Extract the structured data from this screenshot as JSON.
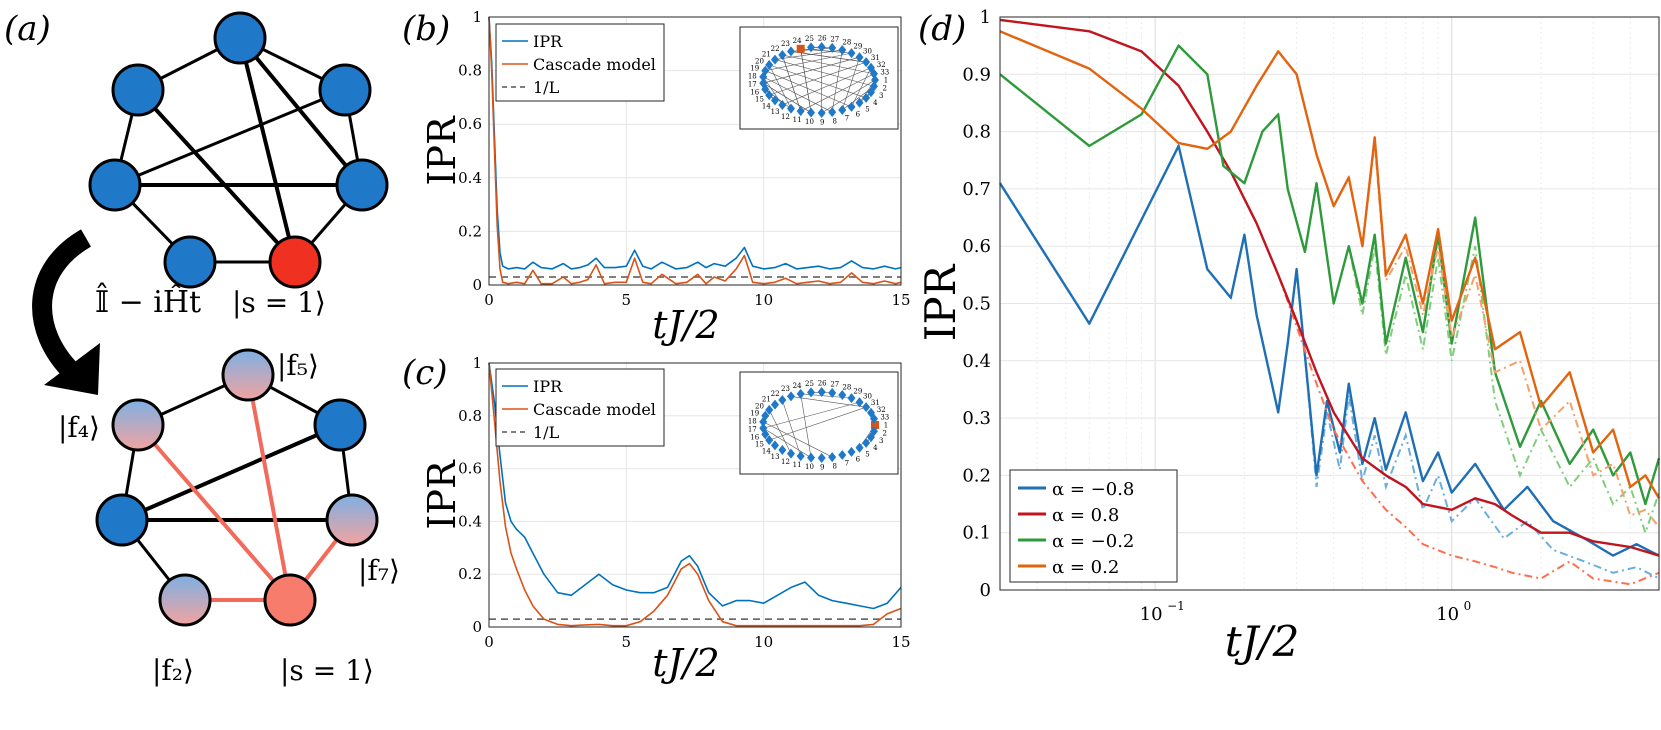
{
  "panel_labels": {
    "a": "(a)",
    "b": "(b)",
    "c": "(c)",
    "d": "(d)"
  },
  "graph": {
    "operator_label": "𝕀̂ − iĤt",
    "top_state_label": "|s = 1⟩",
    "bottom_labels": {
      "f5": "|f₅⟩",
      "f4": "|f₄⟩",
      "f7": "|f₇⟩",
      "f2": "|f₂⟩",
      "s": "|s = 1⟩"
    },
    "colors": {
      "node_blue": "#1f78c8",
      "node_red": "#f03020",
      "edge_red": "#f26a5c"
    }
  },
  "chart_data": [
    {
      "id": "b",
      "type": "line",
      "xlabel": "tJ/2",
      "ylabel": "IPR",
      "xlim": [
        0,
        15
      ],
      "ylim": [
        0,
        1
      ],
      "xticks": [
        0,
        5,
        10,
        15
      ],
      "yticks": [
        0,
        0.2,
        0.4,
        0.6,
        0.8,
        1
      ],
      "ytick_labels": [
        "0",
        "0.2",
        "0.4",
        "0.6",
        "0.8",
        "1"
      ],
      "legend": [
        "IPR",
        "Cascade model",
        "1/L"
      ],
      "inset_ring_labels": [
        "1",
        "33",
        "32",
        "31",
        "30",
        "29",
        "28",
        "27",
        "26",
        "25",
        "24",
        "23",
        "22",
        "21",
        "20",
        "19",
        "18",
        "17",
        "16",
        "15",
        "14",
        "13",
        "12",
        "11",
        "10",
        "9",
        "8",
        "7",
        "6",
        "5",
        "4",
        "3",
        "2"
      ],
      "one_over_L": 0.03,
      "series": [
        {
          "name": "IPR",
          "color": "#0072bd",
          "x": [
            0,
            0.1,
            0.2,
            0.3,
            0.4,
            0.5,
            0.7,
            1.0,
            1.3,
            1.6,
            1.9,
            2.3,
            2.7,
            3.0,
            3.3,
            3.6,
            3.9,
            4.2,
            4.6,
            5.0,
            5.3,
            5.6,
            5.9,
            6.3,
            6.8,
            7.2,
            7.6,
            7.9,
            8.2,
            8.6,
            9.0,
            9.3,
            9.6,
            10.0,
            10.4,
            10.8,
            11.2,
            11.6,
            12.0,
            12.4,
            12.8,
            13.2,
            13.6,
            14.0,
            14.4,
            14.8,
            15.0
          ],
          "y": [
            1.0,
            0.83,
            0.55,
            0.28,
            0.12,
            0.07,
            0.06,
            0.065,
            0.06,
            0.085,
            0.065,
            0.06,
            0.08,
            0.06,
            0.065,
            0.075,
            0.1,
            0.065,
            0.065,
            0.07,
            0.13,
            0.07,
            0.06,
            0.085,
            0.06,
            0.065,
            0.085,
            0.065,
            0.08,
            0.07,
            0.1,
            0.14,
            0.07,
            0.06,
            0.065,
            0.08,
            0.06,
            0.065,
            0.07,
            0.06,
            0.065,
            0.09,
            0.065,
            0.06,
            0.07,
            0.06,
            0.065
          ]
        },
        {
          "name": "Cascade model",
          "color": "#d95319",
          "x": [
            0,
            0.1,
            0.2,
            0.3,
            0.4,
            0.5,
            0.7,
            1.0,
            1.3,
            1.6,
            1.9,
            2.3,
            2.7,
            3.0,
            3.3,
            3.6,
            3.9,
            4.2,
            4.6,
            5.0,
            5.3,
            5.6,
            5.9,
            6.3,
            6.8,
            7.2,
            7.6,
            7.9,
            8.2,
            8.6,
            9.0,
            9.3,
            9.6,
            10.0,
            10.4,
            10.8,
            11.2,
            11.6,
            12.0,
            12.4,
            12.8,
            13.2,
            13.6,
            14.0,
            14.4,
            14.8,
            15.0
          ],
          "y": [
            1.0,
            0.8,
            0.5,
            0.22,
            0.06,
            0.01,
            0.005,
            0.01,
            0.005,
            0.055,
            0.005,
            0.005,
            0.03,
            0.005,
            0.01,
            0.02,
            0.075,
            0.005,
            0.01,
            0.01,
            0.1,
            0.01,
            0.005,
            0.04,
            0.005,
            0.01,
            0.04,
            0.005,
            0.03,
            0.015,
            0.06,
            0.11,
            0.01,
            0.005,
            0.01,
            0.025,
            0.005,
            0.01,
            0.015,
            0.005,
            0.01,
            0.045,
            0.01,
            0.005,
            0.015,
            0.005,
            0.01
          ]
        }
      ]
    },
    {
      "id": "c",
      "type": "line",
      "xlabel": "tJ/2",
      "ylabel": "IPR",
      "xlim": [
        0,
        15
      ],
      "ylim": [
        0,
        1
      ],
      "xticks": [
        0,
        5,
        10,
        15
      ],
      "yticks": [
        0,
        0.2,
        0.4,
        0.6,
        0.8,
        1
      ],
      "ytick_labels": [
        "0",
        "0.2",
        "0.4",
        "0.6",
        "0.8",
        "1"
      ],
      "legend": [
        "IPR",
        "Cascade model",
        "1/L"
      ],
      "inset_ring_labels": [
        "1",
        "33",
        "32",
        "31",
        "30",
        "29",
        "28",
        "27",
        "26",
        "25",
        "24",
        "23",
        "22",
        "21",
        "20",
        "19",
        "18",
        "17",
        "16",
        "15",
        "14",
        "13",
        "12",
        "11",
        "10",
        "9",
        "8",
        "7",
        "6",
        "5",
        "4",
        "3",
        "2"
      ],
      "one_over_L": 0.03,
      "series": [
        {
          "name": "IPR",
          "color": "#0072bd",
          "x": [
            0,
            0.2,
            0.4,
            0.6,
            0.8,
            1.0,
            1.3,
            1.6,
            2.0,
            2.5,
            3.0,
            3.5,
            4.0,
            4.5,
            5.0,
            5.5,
            6.0,
            6.5,
            7.0,
            7.3,
            7.6,
            8.0,
            8.5,
            9.0,
            9.5,
            10.0,
            10.5,
            11.0,
            11.5,
            12.0,
            12.5,
            13.0,
            13.5,
            14.0,
            14.5,
            15.0
          ],
          "y": [
            1.0,
            0.85,
            0.65,
            0.47,
            0.4,
            0.37,
            0.34,
            0.28,
            0.2,
            0.13,
            0.12,
            0.16,
            0.2,
            0.16,
            0.14,
            0.13,
            0.13,
            0.15,
            0.25,
            0.27,
            0.23,
            0.13,
            0.08,
            0.1,
            0.1,
            0.09,
            0.12,
            0.15,
            0.17,
            0.12,
            0.1,
            0.09,
            0.08,
            0.07,
            0.09,
            0.15
          ]
        },
        {
          "name": "Cascade model",
          "color": "#d95319",
          "x": [
            0,
            0.2,
            0.4,
            0.6,
            0.8,
            1.0,
            1.3,
            1.6,
            2.0,
            2.5,
            3.0,
            3.5,
            4.0,
            4.5,
            5.0,
            5.5,
            6.0,
            6.5,
            7.0,
            7.3,
            7.6,
            8.0,
            8.5,
            9.0,
            9.5,
            10.0,
            10.5,
            11.0,
            11.5,
            12.0,
            12.5,
            13.0,
            13.5,
            14.0,
            14.5,
            15.0
          ],
          "y": [
            1.0,
            0.78,
            0.55,
            0.38,
            0.28,
            0.22,
            0.14,
            0.08,
            0.03,
            0.01,
            0.005,
            0.008,
            0.01,
            0.005,
            0.005,
            0.02,
            0.06,
            0.12,
            0.22,
            0.24,
            0.2,
            0.1,
            0.02,
            0.005,
            0.005,
            0.005,
            0.005,
            0.005,
            0.005,
            0.005,
            0.005,
            0.005,
            0.005,
            0.01,
            0.05,
            0.07
          ]
        }
      ]
    },
    {
      "id": "d",
      "type": "line",
      "xlabel": "tJ/2",
      "ylabel": "IPR",
      "xscale": "log",
      "xlim": [
        0.03,
        5
      ],
      "ylim": [
        0,
        1
      ],
      "xticks": [
        0.1,
        1
      ],
      "xtick_labels": [
        "10",
        "10"
      ],
      "xtick_exponents": [
        "−1",
        "0"
      ],
      "yticks": [
        0,
        0.1,
        0.2,
        0.3,
        0.4,
        0.5,
        0.6,
        0.7,
        0.8,
        0.9,
        1
      ],
      "ytick_labels": [
        "0",
        "0.1",
        "0.2",
        "0.3",
        "0.4",
        "0.5",
        "0.6",
        "0.7",
        "0.8",
        "0.9",
        "1"
      ],
      "legend_position": "bottom-left",
      "series": [
        {
          "name": "α = −0.8",
          "color": "#1f6fb5",
          "dash_color": "#6aaede",
          "x": [
            0.03,
            0.06,
            0.12,
            0.15,
            0.18,
            0.2,
            0.22,
            0.26,
            0.28,
            0.3,
            0.32,
            0.35,
            0.38,
            0.42,
            0.45,
            0.5,
            0.55,
            0.6,
            0.7,
            0.8,
            0.9,
            1.0,
            1.2,
            1.5,
            1.8,
            2.2,
            2.8,
            3.5,
            4.2,
            5.0
          ],
          "y": [
            0.71,
            0.465,
            0.775,
            0.56,
            0.51,
            0.62,
            0.48,
            0.31,
            0.43,
            0.56,
            0.41,
            0.2,
            0.33,
            0.24,
            0.36,
            0.22,
            0.3,
            0.21,
            0.31,
            0.19,
            0.24,
            0.17,
            0.22,
            0.14,
            0.18,
            0.12,
            0.09,
            0.06,
            0.08,
            0.06
          ],
          "dash_y": [
            0.71,
            0.465,
            0.775,
            0.56,
            0.51,
            0.62,
            0.48,
            0.31,
            0.43,
            0.56,
            0.41,
            0.18,
            0.31,
            0.21,
            0.34,
            0.19,
            0.27,
            0.18,
            0.27,
            0.14,
            0.2,
            0.12,
            0.16,
            0.09,
            0.12,
            0.07,
            0.05,
            0.03,
            0.04,
            0.02
          ]
        },
        {
          "name": "α = 0.8",
          "color": "#c0141f",
          "dash_color": "#ff6e4f",
          "x": [
            0.03,
            0.06,
            0.09,
            0.12,
            0.15,
            0.18,
            0.22,
            0.26,
            0.3,
            0.35,
            0.4,
            0.5,
            0.6,
            0.7,
            0.8,
            1.0,
            1.2,
            1.4,
            1.6,
            2.0,
            2.5,
            3.0,
            4.0,
            5.0
          ],
          "y": [
            0.995,
            0.975,
            0.94,
            0.88,
            0.8,
            0.73,
            0.64,
            0.55,
            0.47,
            0.38,
            0.31,
            0.23,
            0.2,
            0.18,
            0.15,
            0.14,
            0.16,
            0.15,
            0.13,
            0.1,
            0.1,
            0.085,
            0.075,
            0.06
          ],
          "dash_y": [
            0.995,
            0.975,
            0.94,
            0.88,
            0.8,
            0.73,
            0.64,
            0.55,
            0.46,
            0.36,
            0.28,
            0.19,
            0.14,
            0.11,
            0.08,
            0.06,
            0.05,
            0.04,
            0.03,
            0.02,
            0.05,
            0.02,
            0.01,
            0.03
          ]
        },
        {
          "name": "α = −0.2",
          "color": "#2e9a3c",
          "dash_color": "#7fcf7a",
          "x": [
            0.03,
            0.06,
            0.09,
            0.12,
            0.15,
            0.17,
            0.2,
            0.23,
            0.26,
            0.28,
            0.32,
            0.35,
            0.4,
            0.45,
            0.5,
            0.55,
            0.6,
            0.7,
            0.8,
            0.9,
            1.0,
            1.2,
            1.4,
            1.7,
            2.0,
            2.5,
            3.0,
            3.5,
            4.0,
            4.5,
            5.0
          ],
          "y": [
            0.9,
            0.775,
            0.83,
            0.95,
            0.9,
            0.74,
            0.71,
            0.8,
            0.83,
            0.7,
            0.59,
            0.71,
            0.5,
            0.6,
            0.5,
            0.62,
            0.43,
            0.58,
            0.45,
            0.62,
            0.43,
            0.65,
            0.38,
            0.25,
            0.33,
            0.22,
            0.28,
            0.2,
            0.24,
            0.15,
            0.23
          ],
          "dash_y": [
            0.9,
            0.775,
            0.83,
            0.95,
            0.9,
            0.74,
            0.71,
            0.8,
            0.83,
            0.7,
            0.59,
            0.71,
            0.5,
            0.6,
            0.48,
            0.6,
            0.41,
            0.55,
            0.42,
            0.58,
            0.4,
            0.6,
            0.33,
            0.2,
            0.28,
            0.18,
            0.23,
            0.15,
            0.18,
            0.1,
            0.17
          ]
        },
        {
          "name": "α = 0.2",
          "color": "#e2640f",
          "dash_color": "#f5a06a",
          "x": [
            0.03,
            0.06,
            0.09,
            0.12,
            0.15,
            0.18,
            0.22,
            0.26,
            0.3,
            0.35,
            0.4,
            0.45,
            0.5,
            0.55,
            0.6,
            0.7,
            0.8,
            0.9,
            1.0,
            1.2,
            1.4,
            1.7,
            2.0,
            2.5,
            3.0,
            3.5,
            4.0,
            4.5,
            5.0
          ],
          "y": [
            0.975,
            0.91,
            0.84,
            0.78,
            0.77,
            0.8,
            0.88,
            0.94,
            0.9,
            0.76,
            0.67,
            0.72,
            0.6,
            0.79,
            0.55,
            0.62,
            0.5,
            0.63,
            0.47,
            0.58,
            0.42,
            0.45,
            0.32,
            0.38,
            0.24,
            0.28,
            0.18,
            0.2,
            0.16
          ],
          "dash_y": [
            0.975,
            0.91,
            0.84,
            0.78,
            0.77,
            0.8,
            0.88,
            0.94,
            0.9,
            0.76,
            0.67,
            0.72,
            0.6,
            0.78,
            0.54,
            0.6,
            0.48,
            0.6,
            0.44,
            0.55,
            0.38,
            0.4,
            0.28,
            0.33,
            0.2,
            0.22,
            0.13,
            0.14,
            0.11
          ]
        }
      ]
    }
  ]
}
